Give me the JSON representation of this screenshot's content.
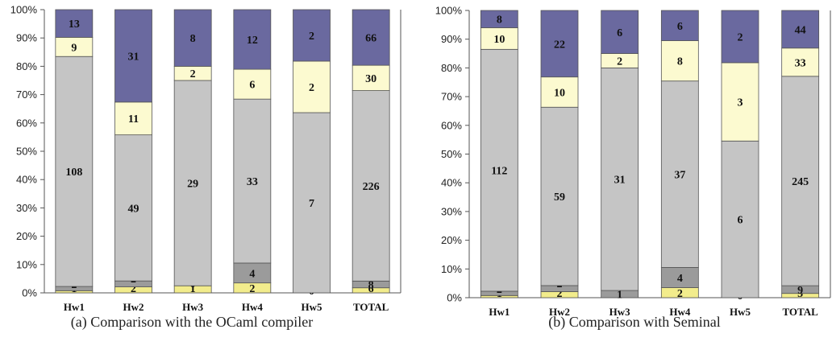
{
  "chart_data": [
    {
      "type": "bar",
      "stacked": true,
      "normalized": true,
      "caption": "(a)  Comparison with the OCaml compiler",
      "categories": [
        "Hw1",
        "Hw2",
        "Hw3",
        "Hw4",
        "Hw5",
        "TOTAL"
      ],
      "y_ticks": [
        "0%",
        "10%",
        "20%",
        "30%",
        "40%",
        "50%",
        "60%",
        "70%",
        "80%",
        "90%",
        "100%"
      ],
      "ylim": [
        0,
        100
      ],
      "series": [
        {
          "color": "#f2ec8c",
          "values": [
            1,
            2,
            1,
            2,
            0,
            6
          ]
        },
        {
          "color": "#9b9b9b",
          "values": [
            2,
            2,
            0,
            4,
            0,
            8
          ]
        },
        {
          "color": "#c5c5c5",
          "values": [
            108,
            49,
            29,
            33,
            7,
            226
          ]
        },
        {
          "color": "#fcfad0",
          "values": [
            9,
            11,
            2,
            6,
            2,
            30
          ]
        },
        {
          "color": "#6a699f",
          "values": [
            13,
            31,
            8,
            12,
            2,
            66
          ]
        }
      ]
    },
    {
      "type": "bar",
      "stacked": true,
      "normalized": true,
      "caption": "(b)  Comparison with Seminal",
      "categories": [
        "Hw1",
        "Hw2",
        "Hw3",
        "Hw4",
        "Hw5",
        "TOTAL"
      ],
      "y_ticks": [
        "0%",
        "10%",
        "20%",
        "30%",
        "40%",
        "50%",
        "60%",
        "70%",
        "80%",
        "90%",
        "100%"
      ],
      "ylim": [
        0,
        100
      ],
      "series": [
        {
          "color": "#f2ec8c",
          "values": [
            1,
            2,
            0,
            2,
            0,
            5
          ]
        },
        {
          "color": "#9b9b9b",
          "values": [
            2,
            2,
            1,
            4,
            0,
            9
          ]
        },
        {
          "color": "#c5c5c5",
          "values": [
            112,
            59,
            31,
            37,
            6,
            245
          ]
        },
        {
          "color": "#fcfad0",
          "values": [
            10,
            10,
            2,
            8,
            3,
            33
          ]
        },
        {
          "color": "#6a699f",
          "values": [
            8,
            22,
            6,
            6,
            2,
            44
          ]
        }
      ]
    }
  ]
}
